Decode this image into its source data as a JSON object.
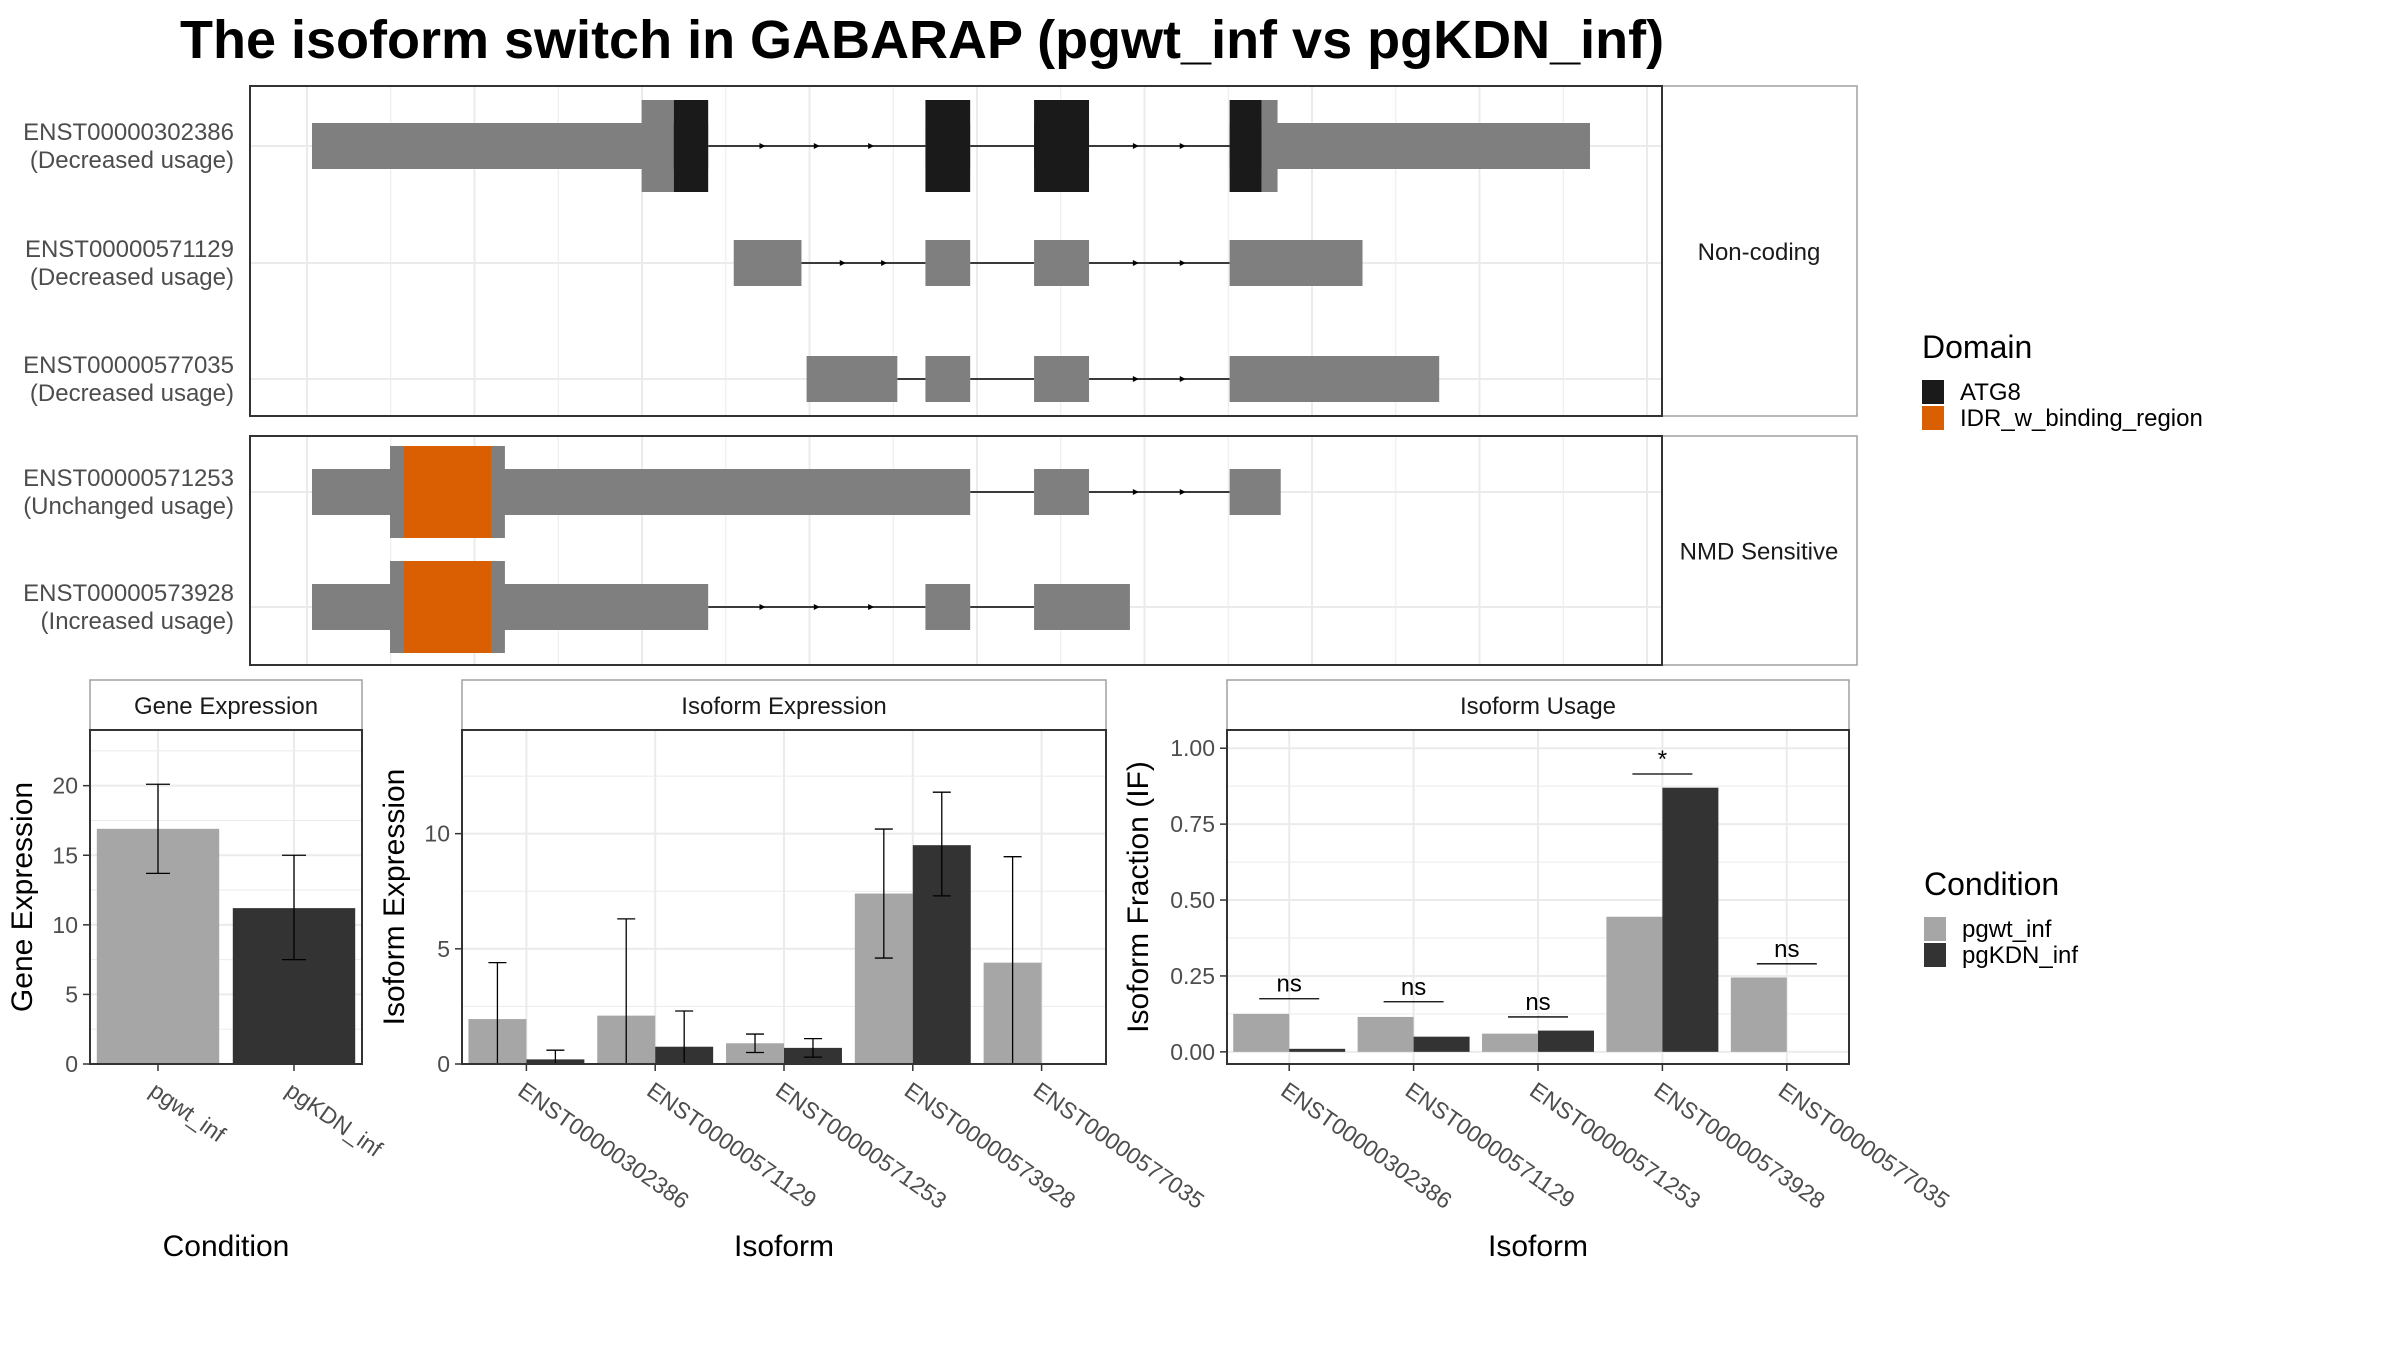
{
  "title": "The isoform switch in GABARAP (pgwt_inf vs pgKDN_inf)",
  "colors": {
    "exon": "#7f7f7f",
    "atg8": "#1a1a1a",
    "idr": "#d95f02",
    "pgwt_inf": "#a6a6a6",
    "pgKDN_inf": "#333333",
    "grid": "#ebebeb",
    "panel_border": "#333333",
    "strip_border": "#a0a0a0"
  },
  "legend_domain": {
    "title": "Domain",
    "items": [
      {
        "label": "ATG8",
        "color": "#1a1a1a"
      },
      {
        "label": "IDR_w_binding_region",
        "color": "#d95f02"
      }
    ]
  },
  "legend_condition": {
    "title": "Condition",
    "items": [
      {
        "label": "pgwt_inf",
        "color": "#a6a6a6"
      },
      {
        "label": "pgKDN_inf",
        "color": "#333333"
      }
    ]
  },
  "chart_data": [
    {
      "type": "gene-structure",
      "x_grid_lines": 8,
      "groups": [
        {
          "label": "Non-coding",
          "transcripts": [
            {
              "id": "ENST00000302386",
              "usage": "(Decreased usage)",
              "exons": [
                [
                  0.0,
                  0.26
                ],
                [
                  0.28,
                  0.31
                ],
                [
                  0.48,
                  0.515
                ],
                [
                  0.565,
                  0.608
                ],
                [
                  0.718,
                  0.75
                ],
                [
                  0.75,
                  1.0
                ]
              ],
              "domains": [
                {
                  "name": "ATG8",
                  "segments": [
                    [
                      0.283,
                      0.31
                    ],
                    [
                      0.48,
                      0.515
                    ],
                    [
                      0.565,
                      0.608
                    ],
                    [
                      0.718,
                      0.743
                    ]
                  ]
                }
              ]
            },
            {
              "id": "ENST00000571129",
              "usage": "(Decreased usage)",
              "exons": [
                [
                  0.33,
                  0.383
                ],
                [
                  0.48,
                  0.515
                ],
                [
                  0.565,
                  0.608
                ],
                [
                  0.718,
                  0.822
                ]
              ],
              "domains": []
            },
            {
              "id": "ENST00000577035",
              "usage": "(Decreased usage)",
              "exons": [
                [
                  0.387,
                  0.458
                ],
                [
                  0.48,
                  0.515
                ],
                [
                  0.565,
                  0.608
                ],
                [
                  0.718,
                  0.882
                ]
              ],
              "domains": []
            }
          ]
        },
        {
          "label": "NMD Sensitive",
          "transcripts": [
            {
              "id": "ENST00000571253",
              "usage": "(Unchanged usage)",
              "exons": [
                [
                  0.0,
                  0.515
                ],
                [
                  0.565,
                  0.608
                ],
                [
                  0.718,
                  0.758
                ]
              ],
              "domains": [
                {
                  "name": "IDR_w_binding_region",
                  "segments": [
                    [
                      0.072,
                      0.14
                    ]
                  ]
                }
              ]
            },
            {
              "id": "ENST00000573928",
              "usage": "(Increased usage)",
              "exons": [
                [
                  0.0,
                  0.31
                ],
                [
                  0.48,
                  0.515
                ],
                [
                  0.565,
                  0.64
                ]
              ],
              "domains": [
                {
                  "name": "IDR_w_binding_region",
                  "segments": [
                    [
                      0.072,
                      0.14
                    ]
                  ]
                }
              ]
            }
          ]
        }
      ]
    },
    {
      "type": "bar",
      "strip": "Gene Expression",
      "xlabel": "Condition",
      "ylabel": "Gene Expression",
      "ylim": [
        0,
        24
      ],
      "yticks": [
        0,
        5,
        10,
        15,
        20
      ],
      "categories": [
        "pgwt_inf",
        "pgKDN_inf"
      ],
      "values": [
        16.9,
        11.2
      ],
      "err_low": [
        13.7,
        7.5
      ],
      "err_high": [
        20.1,
        15.0
      ]
    },
    {
      "type": "bar",
      "strip": "Isoform Expression",
      "xlabel": "Isoform",
      "ylabel": "Isoform Expression",
      "ylim": [
        0,
        14.5
      ],
      "yticks": [
        0,
        5,
        10
      ],
      "categories": [
        "ENST00000302386",
        "ENST00000571129",
        "ENST00000571253",
        "ENST00000573928",
        "ENST00000577035"
      ],
      "series": [
        {
          "name": "pgwt_inf",
          "values": [
            1.95,
            2.1,
            0.9,
            7.4,
            4.4
          ],
          "err_low": [
            0.0,
            0.0,
            0.5,
            4.6,
            0.0
          ],
          "err_high": [
            4.4,
            6.3,
            1.3,
            10.2,
            9.0
          ]
        },
        {
          "name": "pgKDN_inf",
          "values": [
            0.2,
            0.75,
            0.7,
            9.5,
            0.0
          ],
          "err_low": [
            0.0,
            0.0,
            0.3,
            7.3,
            0.0
          ],
          "err_high": [
            0.6,
            2.3,
            1.1,
            11.8,
            0.0
          ]
        }
      ]
    },
    {
      "type": "bar",
      "strip": "Isoform Usage",
      "xlabel": "Isoform",
      "ylabel": "Isoform Fraction (IF)",
      "ylim": [
        -0.04,
        1.06
      ],
      "yticks": [
        0.0,
        0.25,
        0.5,
        0.75,
        1.0
      ],
      "ytick_labels": [
        "0.00",
        "0.25",
        "0.50",
        "0.75",
        "1.00"
      ],
      "categories": [
        "ENST00000302386",
        "ENST00000571129",
        "ENST00000571253",
        "ENST00000573928",
        "ENST00000577035"
      ],
      "series": [
        {
          "name": "pgwt_inf",
          "values": [
            0.125,
            0.115,
            0.06,
            0.445,
            0.245
          ]
        },
        {
          "name": "pgKDN_inf",
          "values": [
            0.01,
            0.05,
            0.07,
            0.87,
            0.0
          ]
        }
      ],
      "significance": [
        "ns",
        "ns",
        "ns",
        "*",
        "ns"
      ],
      "significance_y": [
        0.175,
        0.165,
        0.115,
        0.915,
        0.29
      ]
    }
  ]
}
